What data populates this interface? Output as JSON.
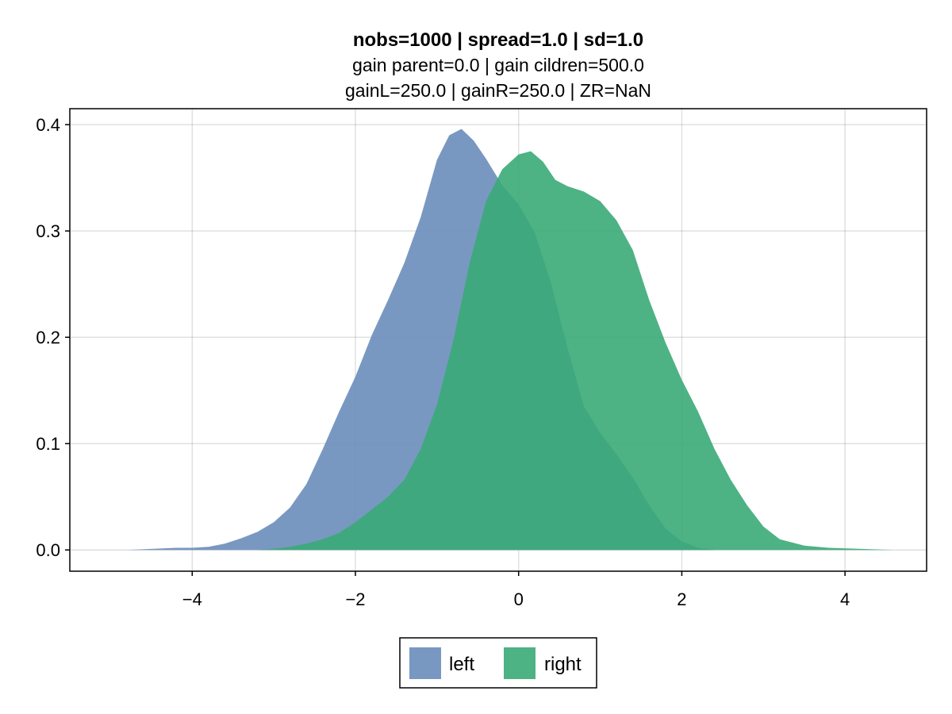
{
  "chart_data": {
    "type": "area",
    "title": "nobs=1000 | spread=1.0 | sd=1.0",
    "subtitle_lines": [
      "gain parent=0.0 | gain cildren=500.0",
      "gainL=250.0 | gainR=250.0 | ZR=NaN"
    ],
    "xlabel": "",
    "ylabel": "",
    "xlim": [
      -5.5,
      5.0
    ],
    "ylim": [
      -0.02,
      0.415
    ],
    "xticks": [
      -4,
      -2,
      0,
      2,
      4
    ],
    "xtick_labels": [
      "−4",
      "−2",
      "0",
      "2",
      "4"
    ],
    "yticks": [
      0.0,
      0.1,
      0.2,
      0.3,
      0.4
    ],
    "ytick_labels": [
      "0.0",
      "0.1",
      "0.2",
      "0.3",
      "0.4"
    ],
    "grid": true,
    "legend_position": "bottom-center",
    "series": [
      {
        "name": "left",
        "color": "#6a8dba",
        "x": [
          -4.8,
          -4.5,
          -4.2,
          -4.0,
          -3.8,
          -3.6,
          -3.4,
          -3.2,
          -3.0,
          -2.8,
          -2.6,
          -2.4,
          -2.2,
          -2.0,
          -1.8,
          -1.6,
          -1.4,
          -1.2,
          -1.0,
          -0.85,
          -0.7,
          -0.55,
          -0.4,
          -0.2,
          0.0,
          0.2,
          0.4,
          0.6,
          0.8,
          1.0,
          1.2,
          1.4,
          1.6,
          1.8,
          2.0,
          2.2,
          2.4
        ],
        "y": [
          0.0,
          0.001,
          0.002,
          0.002,
          0.003,
          0.006,
          0.011,
          0.017,
          0.026,
          0.04,
          0.062,
          0.095,
          0.13,
          0.163,
          0.202,
          0.235,
          0.27,
          0.313,
          0.367,
          0.39,
          0.396,
          0.385,
          0.368,
          0.343,
          0.325,
          0.298,
          0.25,
          0.19,
          0.135,
          0.11,
          0.09,
          0.068,
          0.042,
          0.02,
          0.008,
          0.002,
          0.0
        ]
      },
      {
        "name": "right",
        "color": "#3aaa77",
        "x": [
          -3.2,
          -3.0,
          -2.8,
          -2.6,
          -2.4,
          -2.2,
          -2.0,
          -1.8,
          -1.6,
          -1.4,
          -1.2,
          -1.0,
          -0.8,
          -0.6,
          -0.4,
          -0.2,
          0.0,
          0.15,
          0.3,
          0.45,
          0.6,
          0.8,
          1.0,
          1.2,
          1.4,
          1.6,
          1.8,
          2.0,
          2.2,
          2.4,
          2.6,
          2.8,
          3.0,
          3.2,
          3.5,
          3.8,
          4.2,
          4.6
        ],
        "y": [
          0.0,
          0.001,
          0.003,
          0.006,
          0.01,
          0.016,
          0.026,
          0.038,
          0.05,
          0.066,
          0.095,
          0.137,
          0.197,
          0.27,
          0.328,
          0.358,
          0.372,
          0.375,
          0.365,
          0.348,
          0.342,
          0.337,
          0.328,
          0.31,
          0.282,
          0.235,
          0.195,
          0.16,
          0.13,
          0.095,
          0.066,
          0.042,
          0.022,
          0.01,
          0.004,
          0.002,
          0.001,
          0.0
        ]
      }
    ]
  }
}
